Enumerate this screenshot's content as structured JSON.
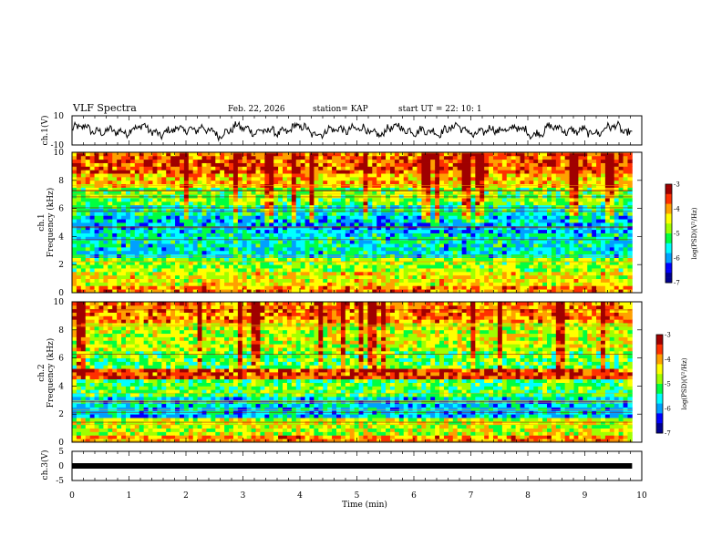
{
  "header": {
    "title": "VLF Spectra",
    "date": "Feb. 22, 2026",
    "station": "station= KAP",
    "start_ut": "start  UT  =   22: 10: 1"
  },
  "colors": {
    "colormap": [
      "#00008f",
      "#0000ff",
      "#00a0ff",
      "#00ffff",
      "#00ff40",
      "#a0ff00",
      "#ffff00",
      "#ffa000",
      "#ff3000",
      "#a00000"
    ]
  },
  "chart_data": [
    {
      "id": "ch1-waveform",
      "type": "line",
      "ylabel": "ch.1(V)",
      "ylim": [
        -10,
        10
      ],
      "y_ticks": [
        "10",
        "-10"
      ],
      "xlim": [
        0,
        10
      ],
      "data_end_min": 9.83,
      "description_series": "noisy voltage trace oscillating roughly between -5 and 5 V"
    },
    {
      "id": "ch1-spectrogram",
      "type": "heatmap",
      "ylabel_line1": "ch.1",
      "ylabel_line2": "Frequency (kHz)",
      "ylim": [
        0,
        10
      ],
      "y_ticks": [
        "0",
        "2",
        "4",
        "6",
        "8",
        "10"
      ],
      "xlim": [
        0,
        10
      ],
      "colorbar": {
        "label": "log(PSD)(V²/Hz)",
        "range": [
          -7,
          -3
        ],
        "ticks": [
          "-3",
          "-4",
          "-5",
          "-6",
          "-7"
        ]
      },
      "bands": [
        {
          "from": 0.0,
          "to": 0.6,
          "value": -3.9
        },
        {
          "from": 0.6,
          "to": 1.6,
          "value": -4.4
        },
        {
          "from": 1.6,
          "to": 2.4,
          "value": -4.8
        },
        {
          "from": 2.4,
          "to": 4.2,
          "value": -5.6
        },
        {
          "from": 4.2,
          "to": 5.4,
          "value": -5.8
        },
        {
          "from": 5.4,
          "to": 6.2,
          "value": -5.5
        },
        {
          "from": 6.2,
          "to": 7.6,
          "value": -4.9
        },
        {
          "from": 7.6,
          "to": 8.6,
          "value": -4.2
        },
        {
          "from": 8.6,
          "to": 10.0,
          "value": -3.7
        }
      ]
    },
    {
      "id": "ch2-spectrogram",
      "type": "heatmap",
      "ylabel_line1": "ch.2",
      "ylabel_line2": "Frequency (kHz)",
      "ylim": [
        0,
        10
      ],
      "y_ticks": [
        "0",
        "2",
        "4",
        "6",
        "8",
        "10"
      ],
      "xlim": [
        0,
        10
      ],
      "colorbar": {
        "label": "log(PSD)(V²/Hz)",
        "range": [
          -7,
          -3
        ],
        "ticks": [
          "-3",
          "-4",
          "-5",
          "-6",
          "-7"
        ]
      },
      "bands": [
        {
          "from": 0.0,
          "to": 0.6,
          "value": -4.0
        },
        {
          "from": 0.6,
          "to": 1.8,
          "value": -4.6
        },
        {
          "from": 1.8,
          "to": 3.2,
          "value": -5.7
        },
        {
          "from": 3.2,
          "to": 4.6,
          "value": -5.1
        },
        {
          "from": 4.6,
          "to": 5.2,
          "value": -3.6
        },
        {
          "from": 5.2,
          "to": 6.6,
          "value": -5.0
        },
        {
          "from": 6.6,
          "to": 8.4,
          "value": -4.6
        },
        {
          "from": 8.4,
          "to": 10.0,
          "value": -3.9
        }
      ]
    },
    {
      "id": "ch3-waveform",
      "type": "line",
      "ylabel": "ch.3(V)",
      "ylim": [
        -5,
        5
      ],
      "y_ticks": [
        "5",
        "0",
        "-5"
      ],
      "xlim": [
        0,
        10
      ],
      "x_ticks": [
        "0",
        "1",
        "2",
        "3",
        "4",
        "5",
        "6",
        "7",
        "8",
        "9",
        "10"
      ],
      "xlabel": "Time (min)",
      "level_value": 0,
      "data_end_min": 9.83
    }
  ]
}
